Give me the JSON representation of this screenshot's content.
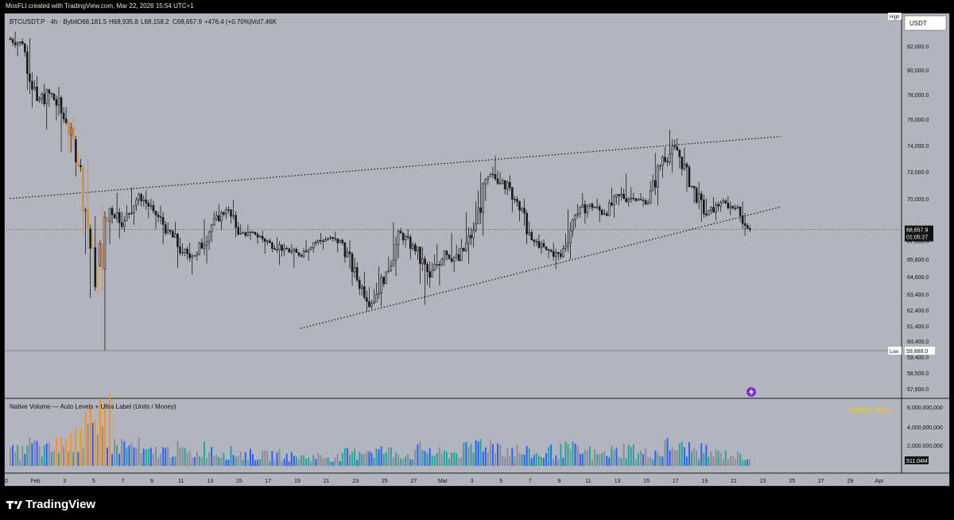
{
  "header": {
    "credit": "MosFLI created with TradingView.com, Mar 22, 2026 15:54 UTC+1"
  },
  "legend": {
    "symbol": "BTCUSDT.P · 4h · Bybit",
    "open": "O68,181.5",
    "high": "H68,935.8",
    "low": "L68,158.2",
    "close": "C68,657.9",
    "change": "+476.4 (+0.70%)",
    "vol": "Vol7.46K"
  },
  "price_axis": {
    "currency": "USDT",
    "high_tag": "High",
    "low_tag": "Low",
    "low_value": "59,888.0",
    "last_price": "68,657.9",
    "countdown": "01:05:27",
    "ticks": [
      "82,000.0",
      "80,000.0",
      "78,000.0",
      "76,000.0",
      "74,000.0",
      "72,000.0",
      "70,000.0",
      "67,000.0",
      "65,800.0",
      "64,600.0",
      "63,400.0",
      "62,400.0",
      "61,400.0",
      "60,400.0",
      "59,400.0",
      "58,500.0",
      "57,600.0"
    ]
  },
  "volume": {
    "title": "Native Volume — Auto Levels + Ultra Label (Units / Money)",
    "watermark": "Golden Team",
    "ticks": [
      "6,000,000,000",
      "4,000,000,000",
      "2,000,000,000"
    ],
    "last_value": "511.04M"
  },
  "time_axis": {
    "labels": [
      "0",
      "Feb",
      "3",
      "5",
      "7",
      "9",
      "11",
      "13",
      "15",
      "17",
      "19",
      "21",
      "23",
      "25",
      "27",
      "Mar",
      "3",
      "5",
      "7",
      "9",
      "11",
      "13",
      "15",
      "17",
      "19",
      "21",
      "23",
      "25",
      "27",
      "29",
      "Apr"
    ]
  },
  "brand": {
    "name": "TradingView"
  },
  "colors": {
    "background": "#b2b5be",
    "candle_body": "#1a1a1a",
    "accent_orange": "#d9893a",
    "volume_blue": "#2962ff",
    "volume_green": "#26a69a",
    "volume_gray": "#8a8d96",
    "volume_orange": "#f7931a",
    "watermark": "#f5d000"
  },
  "chart_data": {
    "type": "candlestick",
    "timeframe": "4h",
    "ylim": [
      57600,
      83000
    ],
    "series": [
      {
        "date": "Jan 31",
        "open": 82500,
        "high": 83000,
        "low": 81200,
        "close": 82100
      },
      {
        "date": "Feb 1",
        "open": 82100,
        "high": 82500,
        "low": 77500,
        "close": 78000
      },
      {
        "date": "Feb 2",
        "open": 78000,
        "high": 79200,
        "low": 75900,
        "close": 78500
      },
      {
        "date": "Feb 3",
        "open": 78500,
        "high": 79000,
        "low": 74300,
        "close": 76400
      },
      {
        "date": "Feb 4",
        "open": 76400,
        "high": 76800,
        "low": 72500,
        "close": 73200
      },
      {
        "date": "Feb 5",
        "open": 73200,
        "high": 73800,
        "low": 63700,
        "close": 64500
      },
      {
        "date": "Feb 6",
        "open": 64500,
        "high": 70600,
        "low": 59888,
        "close": 70200
      },
      {
        "date": "Feb 7",
        "open": 70200,
        "high": 71300,
        "low": 68000,
        "close": 69300
      },
      {
        "date": "Feb 8",
        "open": 69300,
        "high": 71700,
        "low": 69000,
        "close": 71200
      },
      {
        "date": "Feb 9",
        "open": 71200,
        "high": 71500,
        "low": 69500,
        "close": 70000
      },
      {
        "date": "Feb 10",
        "open": 70000,
        "high": 70400,
        "low": 67600,
        "close": 68600
      },
      {
        "date": "Feb 11",
        "open": 68600,
        "high": 69200,
        "low": 65900,
        "close": 67000
      },
      {
        "date": "Feb 12",
        "open": 67000,
        "high": 67700,
        "low": 65400,
        "close": 66900
      },
      {
        "date": "Feb 13",
        "open": 66900,
        "high": 69400,
        "low": 66200,
        "close": 69000
      },
      {
        "date": "Feb 14",
        "open": 69000,
        "high": 70500,
        "low": 68600,
        "close": 70100
      },
      {
        "date": "Feb 15",
        "open": 70100,
        "high": 70800,
        "low": 68100,
        "close": 68400
      },
      {
        "date": "Feb 16",
        "open": 68400,
        "high": 69000,
        "low": 67900,
        "close": 68300
      },
      {
        "date": "Feb 17",
        "open": 68300,
        "high": 68600,
        "low": 66900,
        "close": 67700
      },
      {
        "date": "Feb 18",
        "open": 67700,
        "high": 68100,
        "low": 66100,
        "close": 67300
      },
      {
        "date": "Feb 19",
        "open": 67300,
        "high": 67600,
        "low": 65900,
        "close": 66800
      },
      {
        "date": "Feb 20",
        "open": 66800,
        "high": 67900,
        "low": 66400,
        "close": 67700
      },
      {
        "date": "Feb 21",
        "open": 67700,
        "high": 68400,
        "low": 67200,
        "close": 68000
      },
      {
        "date": "Feb 22",
        "open": 68000,
        "high": 68500,
        "low": 67000,
        "close": 67700
      },
      {
        "date": "Feb 23",
        "open": 67700,
        "high": 67900,
        "low": 64600,
        "close": 65000
      },
      {
        "date": "Feb 24",
        "open": 65000,
        "high": 65600,
        "low": 62700,
        "close": 63300
      },
      {
        "date": "Feb 25",
        "open": 63300,
        "high": 66000,
        "low": 63100,
        "close": 65600
      },
      {
        "date": "Feb 26",
        "open": 65600,
        "high": 69200,
        "low": 65300,
        "close": 68400
      },
      {
        "date": "Feb 27",
        "open": 68400,
        "high": 68700,
        "low": 66500,
        "close": 67100
      },
      {
        "date": "Feb 28",
        "open": 67100,
        "high": 67400,
        "low": 63200,
        "close": 65200
      },
      {
        "date": "Mar 1",
        "open": 65200,
        "high": 67600,
        "low": 64600,
        "close": 67100
      },
      {
        "date": "Mar 2",
        "open": 67100,
        "high": 68400,
        "low": 65600,
        "close": 66400
      },
      {
        "date": "Mar 3",
        "open": 66400,
        "high": 69900,
        "low": 66200,
        "close": 68600
      },
      {
        "date": "Mar 4",
        "open": 68600,
        "high": 72800,
        "low": 68200,
        "close": 72500
      },
      {
        "date": "Mar 5",
        "open": 72500,
        "high": 74000,
        "low": 71900,
        "close": 72200
      },
      {
        "date": "Mar 6",
        "open": 72200,
        "high": 72600,
        "low": 69900,
        "close": 70700
      },
      {
        "date": "Mar 7",
        "open": 70700,
        "high": 70900,
        "low": 67600,
        "close": 67900
      },
      {
        "date": "Mar 8",
        "open": 67900,
        "high": 68300,
        "low": 66900,
        "close": 67200
      },
      {
        "date": "Mar 9",
        "open": 67200,
        "high": 67700,
        "low": 65800,
        "close": 66700
      },
      {
        "date": "Mar 10",
        "open": 66700,
        "high": 70100,
        "low": 66500,
        "close": 69700
      },
      {
        "date": "Mar 11",
        "open": 69700,
        "high": 71300,
        "low": 69100,
        "close": 70500
      },
      {
        "date": "Mar 12",
        "open": 70500,
        "high": 70900,
        "low": 69200,
        "close": 69800
      },
      {
        "date": "Mar 13",
        "open": 69800,
        "high": 71700,
        "low": 69500,
        "close": 71100
      },
      {
        "date": "Mar 14",
        "open": 71100,
        "high": 72700,
        "low": 70300,
        "close": 70900
      },
      {
        "date": "Mar 15",
        "open": 70900,
        "high": 71300,
        "low": 70300,
        "close": 70600
      },
      {
        "date": "Mar 16",
        "open": 70600,
        "high": 74200,
        "low": 70400,
        "close": 73900
      },
      {
        "date": "Mar 17",
        "open": 73900,
        "high": 75900,
        "low": 72800,
        "close": 74400
      },
      {
        "date": "Mar 18",
        "open": 74400,
        "high": 74600,
        "low": 71400,
        "close": 71800
      },
      {
        "date": "Mar 19",
        "open": 71800,
        "high": 72100,
        "low": 69200,
        "close": 69700
      },
      {
        "date": "Mar 20",
        "open": 69700,
        "high": 71000,
        "low": 69300,
        "close": 70600
      },
      {
        "date": "Mar 21",
        "open": 70600,
        "high": 71100,
        "low": 69700,
        "close": 70200
      },
      {
        "date": "Mar 22",
        "open": 70200,
        "high": 70700,
        "low": 68200,
        "close": 68658
      }
    ],
    "trendlines": [
      {
        "name": "upper",
        "from": {
          "date": "Jan 31",
          "value": 70900
        },
        "to": {
          "date": "Mar 25",
          "value": 75400
        }
      },
      {
        "name": "lower",
        "from": {
          "date": "Feb 20",
          "value": 61500
        },
        "to": {
          "date": "Mar 25",
          "value": 70300
        }
      }
    ],
    "volume": [
      1.6,
      2.3,
      1.8,
      2.1,
      2.6,
      3.3,
      3.8,
      2.4,
      2.2,
      1.5,
      1.7,
      1.9,
      1.4,
      2.0,
      1.6,
      1.5,
      1.3,
      1.2,
      1.3,
      1.1,
      1.0,
      1.1,
      1.0,
      1.4,
      1.9,
      1.7,
      1.6,
      1.3,
      1.9,
      1.4,
      1.5,
      1.8,
      2.7,
      2.4,
      1.8,
      1.5,
      1.3,
      1.7,
      1.9,
      1.6,
      1.3,
      1.6,
      1.9,
      1.4,
      1.6,
      2.2,
      2.0,
      1.7,
      1.4,
      1.3,
      1.1
    ]
  }
}
